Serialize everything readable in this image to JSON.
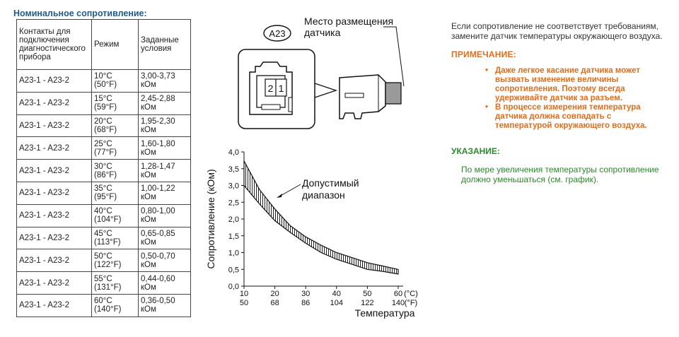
{
  "heading": "Номинальное сопротивление:",
  "table": {
    "headers": [
      "Контакты для подключения диагностического прибора",
      "Режим",
      "Заданные условия"
    ],
    "rows": [
      [
        "A23-1 - A23-2",
        "10°C (50°F)",
        "3,00-3,73 кОм"
      ],
      [
        "A23-1 - A23-2",
        "15°C (59°F)",
        "2,45-2,88 кОм"
      ],
      [
        "A23-1 - A23-2",
        "20°C (68°F)",
        "1,95-2,30 кОм"
      ],
      [
        "A23-1 - A23-2",
        "25°C (77°F)",
        "1,60-1,80 кОм"
      ],
      [
        "A23-1 - A23-2",
        "30°C (86°F)",
        "1,28-1,47 кОм"
      ],
      [
        "A23-1 - A23-2",
        "35°C (95°F)",
        "1,00-1,22 кОм"
      ],
      [
        "A23-1 - A23-2",
        "40°C (104°F)",
        "0,80-1,00 кОм"
      ],
      [
        "A23-1 - A23-2",
        "45°C (113°F)",
        "0,65-0,85 кОм"
      ],
      [
        "A23-1 - A23-2",
        "50°C (122°F)",
        "0,50-0,70 кОм"
      ],
      [
        "A23-1 - A23-2",
        "55°C (131°F)",
        "0,44-0,60 кОм"
      ],
      [
        "A23-1 - A23-2",
        "60°C (140°F)",
        "0,36-0,50 кОм"
      ]
    ]
  },
  "diagram": {
    "connector_id": "A23",
    "location_label_line1": "Место размещения",
    "location_label_line2": "датчика",
    "pin_left": "2",
    "pin_right": "1"
  },
  "chart_data": {
    "type": "area",
    "title": "",
    "xlabel": "Температура",
    "ylabel": "Сопротивление (кОм)",
    "x_ticks_c": [
      "10",
      "20",
      "30",
      "40",
      "50",
      "60"
    ],
    "x_ticks_f": [
      "50",
      "68",
      "86",
      "104",
      "122",
      "140"
    ],
    "x_unit_c": "(°C)",
    "x_unit_f": "(°F)",
    "y_ticks": [
      "0,0",
      "0,5",
      "1,0",
      "1,5",
      "2,0",
      "2,5",
      "3,0",
      "3,5",
      "4,0"
    ],
    "xlim": [
      10,
      60
    ],
    "ylim": [
      0,
      4.0
    ],
    "band_label_line1": "Допустимый",
    "band_label_line2": "диапазон",
    "series": [
      {
        "name": "",
        "x": [
          10,
          15,
          20,
          25,
          30,
          35,
          40,
          45,
          50,
          55,
          60
        ],
        "lower": [
          3.0,
          2.45,
          1.95,
          1.6,
          1.28,
          1.0,
          0.8,
          0.65,
          0.5,
          0.44,
          0.36
        ],
        "upper": [
          3.73,
          2.88,
          2.3,
          1.8,
          1.47,
          1.22,
          1.0,
          0.85,
          0.7,
          0.6,
          0.5
        ]
      }
    ]
  },
  "right": {
    "intro": "Если сопротивление не соответствует требованиям, замените датчик температуры окружающего воздуха.",
    "note_title": "ПРИМЕЧАНИЕ:",
    "notes": [
      "Даже легкое касание датчика может вызвать изменение величины сопротивления. Поэтому всегда удерживайте датчик за разъем.",
      "В процессе измерения температура датчика должна совпадать с температурой окружающего воздуха."
    ],
    "hint_title": "УКАЗАНИЕ:",
    "hint_text": "По мере увеличения температуры сопротивление должно уменьшаться (см. график)."
  }
}
